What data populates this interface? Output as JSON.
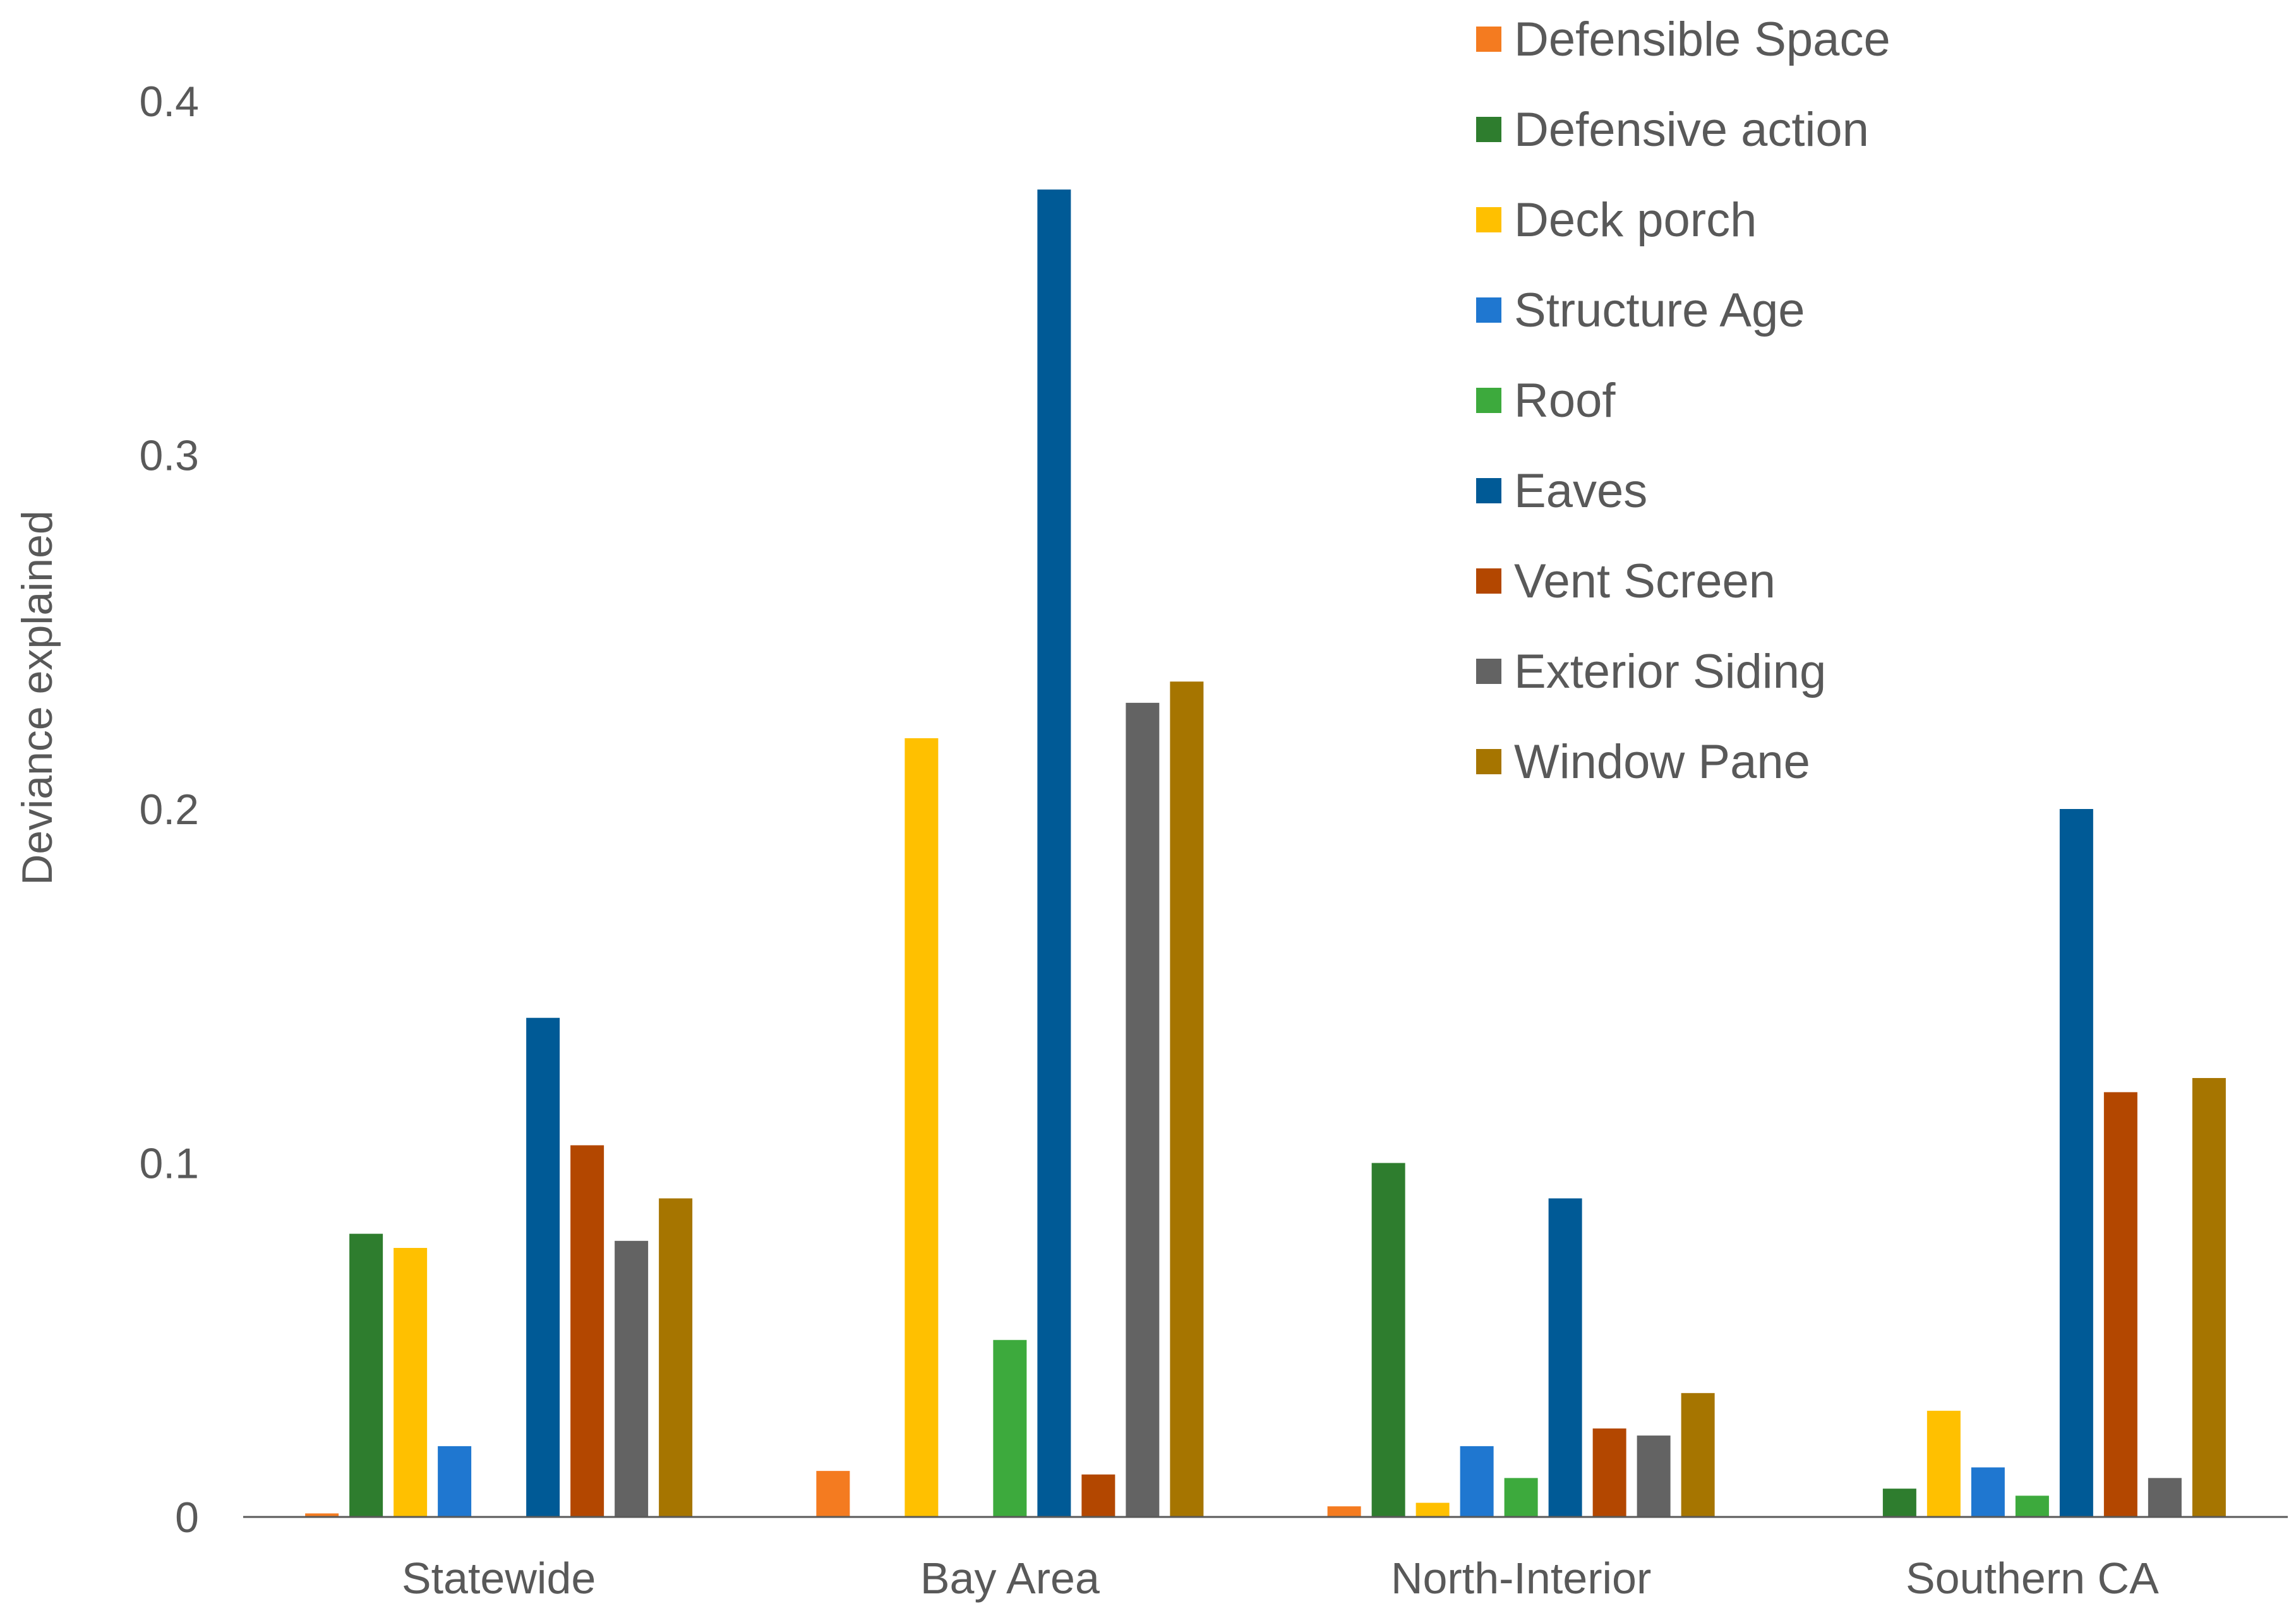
{
  "chart_data": {
    "type": "bar",
    "title": "",
    "xlabel": "",
    "ylabel": "Deviance explained",
    "ylim": [
      0,
      0.4
    ],
    "yticks": [
      "0",
      "0.1",
      "0.2",
      "0.3",
      "0.4"
    ],
    "grid": false,
    "legend_position": "top-right",
    "categories": [
      "Statewide",
      "Bay Area",
      "North-Interior",
      "Southern CA"
    ],
    "series": [
      {
        "name": "Defensible Space",
        "color": "#F47B20",
        "values": [
          0.001,
          0.013,
          0.003,
          0.0
        ]
      },
      {
        "name": "Defensive action",
        "color": "#2E7D2E",
        "values": [
          0.08,
          0.0,
          0.1,
          0.008
        ]
      },
      {
        "name": "Deck porch",
        "color": "#FFC000",
        "values": [
          0.076,
          0.22,
          0.004,
          0.03
        ]
      },
      {
        "name": "Structure Age",
        "color": "#1F77D0",
        "values": [
          0.02,
          0.0,
          0.02,
          0.014
        ]
      },
      {
        "name": "Roof",
        "color": "#3DAA3D",
        "values": [
          0.0,
          0.05,
          0.011,
          0.006
        ]
      },
      {
        "name": "Eaves",
        "color": "#005A96",
        "values": [
          0.141,
          0.375,
          0.09,
          0.2
        ]
      },
      {
        "name": "Vent Screen",
        "color": "#B34700",
        "values": [
          0.105,
          0.012,
          0.025,
          0.12
        ]
      },
      {
        "name": "Exterior Siding",
        "color": "#636363",
        "values": [
          0.078,
          0.23,
          0.023,
          0.011
        ]
      },
      {
        "name": "Window Pane",
        "color": "#A67500",
        "values": [
          0.09,
          0.236,
          0.035,
          0.124
        ]
      }
    ]
  }
}
